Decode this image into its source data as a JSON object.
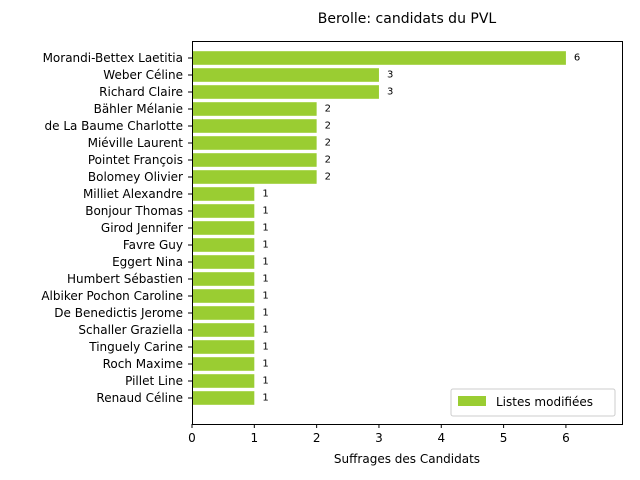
{
  "chart_data": {
    "type": "bar",
    "orientation": "horizontal",
    "title": "Berolle: candidats du PVL",
    "xlabel": "Suffrages des Candidats",
    "ylabel": "",
    "xlim": [
      0,
      6.9
    ],
    "xticks": [
      "0",
      "1",
      "2",
      "3",
      "4",
      "5",
      "6"
    ],
    "categories": [
      "Morandi-Bettex Laetitia",
      "Weber Céline",
      "Richard Claire",
      "Bähler Mélanie",
      "de La Baume Charlotte",
      "Miéville Laurent",
      "Pointet François",
      "Bolomey Olivier",
      "Milliet Alexandre",
      "Bonjour Thomas",
      "Girod Jennifer",
      "Favre Guy",
      "Eggert Nina",
      "Humbert Sébastien",
      "Albiker Pochon Caroline",
      "De Benedictis Jerome",
      "Schaller Graziella",
      "Tinguely Carine",
      "Roch Maxime",
      "Pillet Line",
      "Renaud Céline"
    ],
    "series": [
      {
        "name": "Listes modifiées",
        "color": "#9acd32",
        "values": [
          6,
          3,
          3,
          2,
          2,
          2,
          2,
          2,
          1,
          1,
          1,
          1,
          1,
          1,
          1,
          1,
          1,
          1,
          1,
          1,
          1
        ]
      }
    ],
    "grid": false,
    "legend_position": "lower-right"
  }
}
